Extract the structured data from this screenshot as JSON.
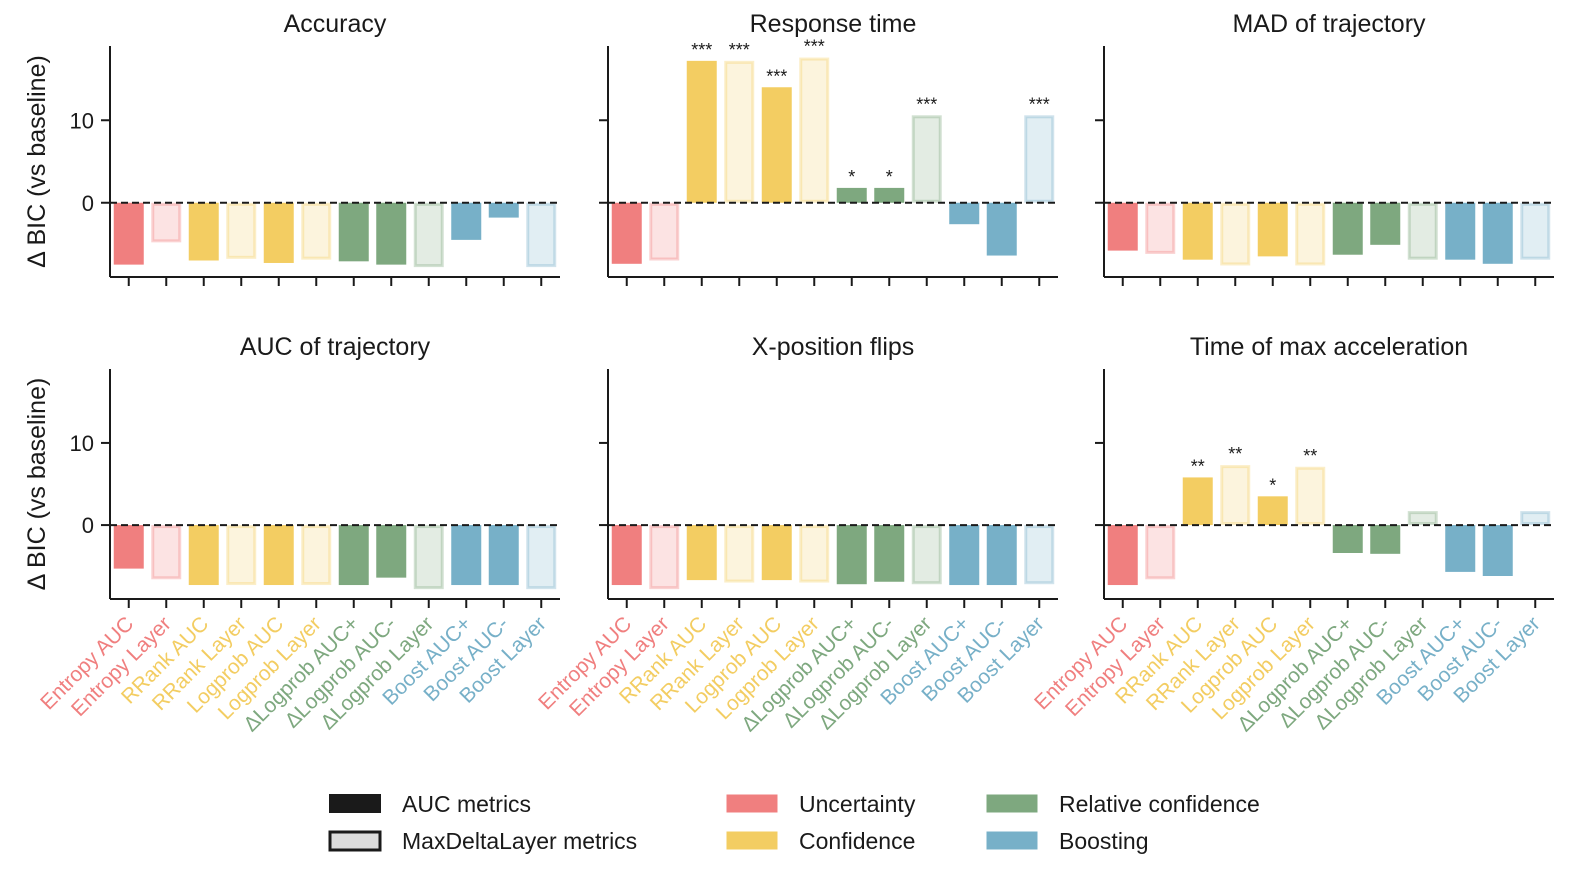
{
  "chart_data": {
    "type": "bar",
    "ylabel": "Δ BIC (vs baseline)",
    "ylim": [
      -9,
      19
    ],
    "yticks": [
      0,
      10
    ],
    "baseline": 0,
    "categories": [
      "Entropy AUC",
      "Entropy Layer",
      "RRank AUC",
      "RRank Layer",
      "Logprob AUC",
      "Logprob Layer",
      "ΔLogprob AUC+",
      "ΔLogprob AUC-",
      "ΔLogprob Layer",
      "Boost AUC+",
      "Boost AUC-",
      "Boost Layer"
    ],
    "category_group": [
      "Uncertainty",
      "Uncertainty",
      "Confidence",
      "Confidence",
      "Confidence",
      "Confidence",
      "Relative confidence",
      "Relative confidence",
      "Relative confidence",
      "Boosting",
      "Boosting",
      "Boosting"
    ],
    "category_style": [
      "AUC metrics",
      "MaxDeltaLayer metrics",
      "AUC metrics",
      "MaxDeltaLayer metrics",
      "AUC metrics",
      "MaxDeltaLayer metrics",
      "AUC metrics",
      "AUC metrics",
      "MaxDeltaLayer metrics",
      "AUC metrics",
      "AUC metrics",
      "MaxDeltaLayer metrics"
    ],
    "group_colors": {
      "Uncertainty": "#f07f7f",
      "Confidence": "#f3cd62",
      "Relative confidence": "#7ea87f",
      "Boosting": "#77b0c8"
    },
    "panels": [
      {
        "title": "Accuracy",
        "values": [
          -7.5,
          -4.8,
          -7.0,
          -6.8,
          -7.3,
          -6.9,
          -7.1,
          -7.5,
          -7.8,
          -4.5,
          -1.8,
          -7.8
        ],
        "significance": [
          "",
          "",
          "",
          "",
          "",
          "",
          "",
          "",
          "",
          "",
          "",
          ""
        ]
      },
      {
        "title": "Response time",
        "values": [
          -7.4,
          -7.0,
          17.2,
          17.2,
          14.0,
          17.6,
          1.8,
          1.8,
          10.6,
          -2.6,
          -6.4,
          10.6
        ],
        "significance": [
          "",
          "",
          "***",
          "***",
          "***",
          "***",
          "*",
          "*",
          "***",
          "",
          "",
          "***"
        ]
      },
      {
        "title": "MAD of trajectory",
        "values": [
          -5.8,
          -6.2,
          -6.9,
          -7.6,
          -6.5,
          -7.6,
          -6.3,
          -5.1,
          -6.9,
          -6.9,
          -7.4,
          -6.9
        ],
        "significance": [
          "",
          "",
          "",
          "",
          "",
          "",
          "",
          "",
          "",
          "",
          "",
          ""
        ]
      },
      {
        "title": "AUC of trajectory",
        "values": [
          -5.3,
          -6.6,
          -7.3,
          -7.3,
          -7.3,
          -7.3,
          -7.3,
          -6.4,
          -7.8,
          -7.3,
          -7.3,
          -7.8
        ],
        "significance": [
          "",
          "",
          "",
          "",
          "",
          "",
          "",
          "",
          "",
          "",
          "",
          ""
        ]
      },
      {
        "title": "X-position flips",
        "values": [
          -7.3,
          -7.8,
          -6.7,
          -7.0,
          -6.7,
          -7.0,
          -7.2,
          -6.9,
          -7.2,
          -7.3,
          -7.3,
          -7.2
        ],
        "significance": [
          "",
          "",
          "",
          "",
          "",
          "",
          "",
          "",
          "",
          "",
          "",
          ""
        ]
      },
      {
        "title": "Time of max acceleration",
        "values": [
          -7.3,
          -6.6,
          5.8,
          7.3,
          3.5,
          7.1,
          -3.4,
          -3.5,
          1.7,
          -5.7,
          -6.2,
          1.7
        ],
        "significance": [
          "",
          "",
          "**",
          "**",
          "*",
          "**",
          "",
          "",
          "",
          "",
          "",
          ""
        ]
      }
    ],
    "legend": {
      "style_entries": [
        "AUC metrics",
        "MaxDeltaLayer metrics"
      ],
      "group_entries": [
        "Uncertainty",
        "Confidence",
        "Relative confidence",
        "Boosting"
      ],
      "position": "bottom-center"
    }
  }
}
